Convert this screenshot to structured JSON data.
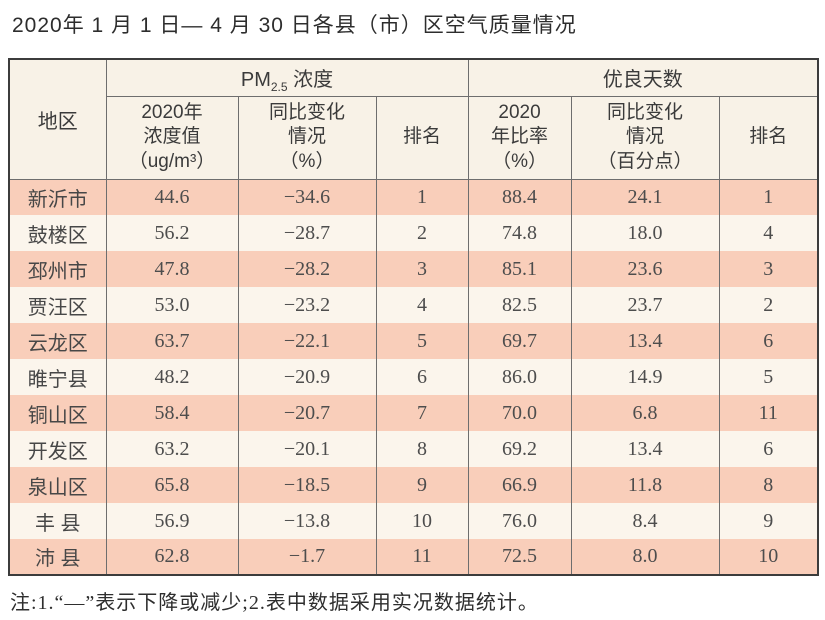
{
  "page": {
    "title": "2020年 1 月 1 日— 4 月 30 日各县（市）区空气质量情况",
    "note": "注:1.“—”表示下降或减少;2.表中数据采用实况数据统计。"
  },
  "colors": {
    "row_salmon": "#f9ceba",
    "row_light": "#fbf5ec",
    "header_bg": "#f8f2e7",
    "border_outer": "#3c3c3c",
    "border_inner": "#6e6e6e"
  },
  "table": {
    "region_header": "地区",
    "group_pm": {
      "prefix": "PM",
      "sub": "2.5",
      "suffix": " 浓度"
    },
    "group_good_days": "优良天数",
    "subheaders": [
      "2020年\n浓度值\n（ug/m³）",
      "同比变化\n情况\n（%）",
      "排名",
      "2020\n年比率\n（%）",
      "同比变化\n情况\n（百分点）",
      "排名"
    ],
    "rows": [
      {
        "region": "新沂市",
        "pm_value": "44.6",
        "pm_change": "−34.6",
        "pm_rank": "1",
        "good_ratio": "88.4",
        "good_change": "24.1",
        "good_rank": "1"
      },
      {
        "region": "鼓楼区",
        "pm_value": "56.2",
        "pm_change": "−28.7",
        "pm_rank": "2",
        "good_ratio": "74.8",
        "good_change": "18.0",
        "good_rank": "4"
      },
      {
        "region": "邳州市",
        "pm_value": "47.8",
        "pm_change": "−28.2",
        "pm_rank": "3",
        "good_ratio": "85.1",
        "good_change": "23.6",
        "good_rank": "3"
      },
      {
        "region": "贾汪区",
        "pm_value": "53.0",
        "pm_change": "−23.2",
        "pm_rank": "4",
        "good_ratio": "82.5",
        "good_change": "23.7",
        "good_rank": "2"
      },
      {
        "region": "云龙区",
        "pm_value": "63.7",
        "pm_change": "−22.1",
        "pm_rank": "5",
        "good_ratio": "69.7",
        "good_change": "13.4",
        "good_rank": "6"
      },
      {
        "region": "睢宁县",
        "pm_value": "48.2",
        "pm_change": "−20.9",
        "pm_rank": "6",
        "good_ratio": "86.0",
        "good_change": "14.9",
        "good_rank": "5"
      },
      {
        "region": "铜山区",
        "pm_value": "58.4",
        "pm_change": "−20.7",
        "pm_rank": "7",
        "good_ratio": "70.0",
        "good_change": "6.8",
        "good_rank": "11"
      },
      {
        "region": "开发区",
        "pm_value": "63.2",
        "pm_change": "−20.1",
        "pm_rank": "8",
        "good_ratio": "69.2",
        "good_change": "13.4",
        "good_rank": "6"
      },
      {
        "region": "泉山区",
        "pm_value": "65.8",
        "pm_change": "−18.5",
        "pm_rank": "9",
        "good_ratio": "66.9",
        "good_change": "11.8",
        "good_rank": "8"
      },
      {
        "region": "丰 县",
        "pm_value": "56.9",
        "pm_change": "−13.8",
        "pm_rank": "10",
        "good_ratio": "76.0",
        "good_change": "8.4",
        "good_rank": "9"
      },
      {
        "region": "沛 县",
        "pm_value": "62.8",
        "pm_change": "−1.7",
        "pm_rank": "11",
        "good_ratio": "72.5",
        "good_change": "8.0",
        "good_rank": "10"
      }
    ]
  }
}
